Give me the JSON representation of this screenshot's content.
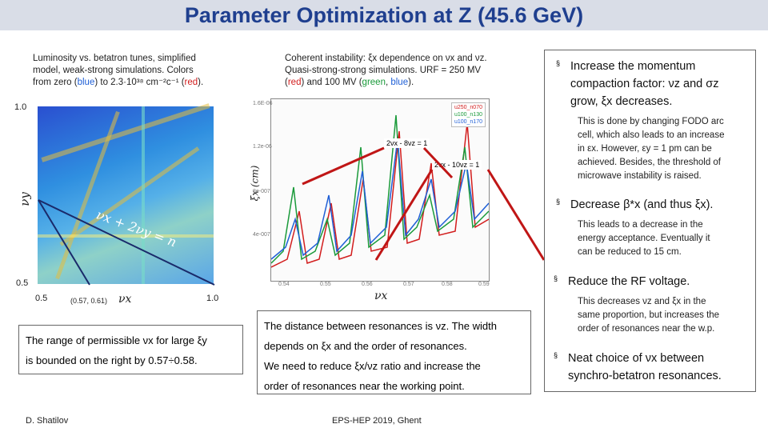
{
  "title": "Parameter Optimization at Z (45.6 GeV)",
  "left_caption": {
    "line1": "Luminosity vs. betatron tunes, simplified",
    "line2": "model, weak-strong simulations.  Colors",
    "line3_a": "from zero (",
    "line3_blue": "blue",
    "line3_b": ") to 2.3·10³⁸ cm⁻²c⁻¹ (",
    "line3_red": "red",
    "line3_c": ")."
  },
  "left_plot": {
    "y_top": "1.0",
    "y_bottom": "0.5",
    "x_left": "0.5",
    "x_right": "1.0",
    "point": "(0.57, 0.61)",
    "x_label": "νx",
    "y_label": "νy",
    "resonance": "νx + 2νy = n"
  },
  "left_box": {
    "line1": "The range of permissible νx for large ξy",
    "line2": "is bounded on the right by 0.57÷0.58."
  },
  "mid_caption": {
    "line1": "Coherent instability: ξx dependence on νx and νz.",
    "line2": "Quasi-strong-strong simulations. URF = 250 MV",
    "line3_a": "(",
    "line3_red": "red",
    "line3_b": ") and 100 MV (",
    "line3_green": "green",
    "line3_c": ", ",
    "line3_blue": "blue",
    "line3_d": ")."
  },
  "mid_plot": {
    "y_label": "ξx (cm)",
    "x_label": "νx",
    "label_res1": "2νx - 8νz = 1",
    "label_res2": "2νx - 10νz = 1",
    "legend": [
      "u250_n070",
      "u100_n130",
      "u100_n170"
    ],
    "x_ticks": [
      "0.54",
      "0.55",
      "0.56",
      "0.57",
      "0.58",
      "0.59"
    ],
    "y_ticks": [
      "1.6E-06",
      "1.2e-06",
      "8e-007",
      "4e-007"
    ]
  },
  "mid_box": {
    "line1": "The distance between resonances is νz. The width",
    "line2": "depends on ξx and the order of resonances.",
    "line3": "We need to reduce ξx/νz ratio and increase the",
    "line4": "order of resonances near the working point."
  },
  "right_bullets": {
    "b1_title_1": "Increase the momentum",
    "b1_title_2": "compaction factor: νz and σz",
    "b1_title_3": "grow, ξx decreases.",
    "b1_sub_1": "This is done by changing FODO arc",
    "b1_sub_2": "cell, which also leads to an increase",
    "b1_sub_3": "in εx. However, εy = 1 pm can be",
    "b1_sub_4": "achieved. Besides, the threshold of",
    "b1_sub_5": "microwave instability is raised.",
    "b2_title": "Decrease  β*x (and thus ξx).",
    "b2_sub_1": "This leads to a decrease in the",
    "b2_sub_2": "energy acceptance. Eventually it",
    "b2_sub_3": "can be reduced to 15 cm.",
    "b3_title": "Reduce the RF voltage.",
    "b3_sub_1": "This decreases νz and ξx in the",
    "b3_sub_2": "same proportion, but increases the",
    "b3_sub_3": "order of resonances near the w.p.",
    "b4_title_1": "Neat choice of νx between",
    "b4_title_2": "synchro-betatron resonances.",
    "bullet": "§"
  },
  "footer": {
    "author": "D. Shatilov",
    "event": "EPS-HEP 2019, Ghent"
  },
  "colors": {
    "title": "#1f3f8f",
    "red": "#d21d1d",
    "green": "#1a9a3a",
    "blue": "#1f5fd6"
  }
}
